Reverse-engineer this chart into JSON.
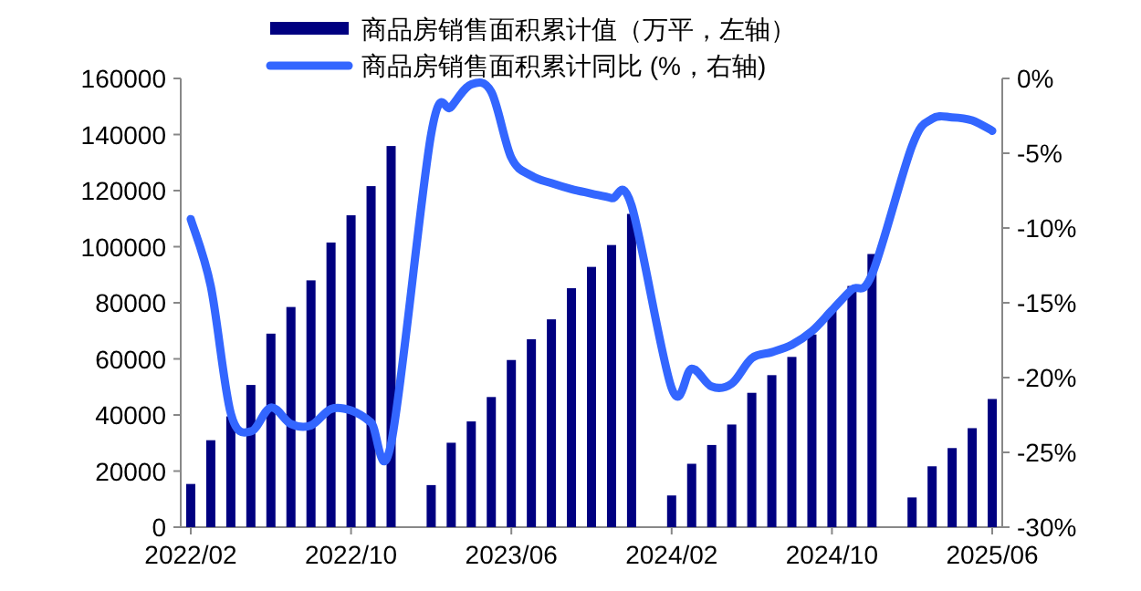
{
  "chart_data": {
    "type": "bar",
    "categories": [
      "2022/02",
      null,
      null,
      null,
      null,
      null,
      null,
      null,
      "2022/10",
      null,
      null,
      null,
      null,
      null,
      null,
      null,
      "2023/06",
      null,
      null,
      null,
      null,
      null,
      null,
      null,
      "2024/02",
      null,
      null,
      null,
      null,
      null,
      null,
      null,
      "2024/10",
      null,
      null,
      null,
      null,
      null,
      null,
      null,
      "2025/06"
    ],
    "series": [
      {
        "name": "商品房销售面积累计值（万平，左轴）",
        "color": "#000080",
        "values": [
          15400,
          31000,
          39500,
          50700,
          69000,
          78500,
          88000,
          101500,
          111200,
          121600,
          135900,
          null,
          15000,
          30100,
          37700,
          46400,
          59600,
          67000,
          74100,
          85200,
          92800,
          100600,
          111700,
          null,
          11300,
          22600,
          29300,
          36600,
          47900,
          54200,
          60700,
          68700,
          77400,
          86000,
          97400,
          null,
          10600,
          21700,
          28200,
          35300,
          45700
        ]
      },
      {
        "name": "商品房销售面积累计同比 (%，右轴)",
        "type": "line",
        "axis": "y2",
        "color": "#3366ff",
        "values": [
          -9.4,
          -13.9,
          -22.4,
          -23.6,
          -22.0,
          -23.1,
          -23.2,
          -22.1,
          -22.2,
          -23.0,
          -24.4,
          null,
          -3.7,
          -1.9,
          -0.4,
          -0.9,
          -5.3,
          -6.5,
          -7.0,
          -7.4,
          -7.7,
          -8.0,
          -8.5,
          null,
          -20.7,
          -19.4,
          -20.6,
          -20.4,
          -18.7,
          -18.3,
          -17.8,
          -16.9,
          -15.5,
          -14.1,
          -13.1,
          null,
          -4.5,
          -2.7,
          -2.6,
          -2.8,
          -3.5
        ]
      }
    ],
    "ylim": [
      0,
      160000
    ],
    "yticks": [
      0,
      20000,
      40000,
      60000,
      80000,
      100000,
      120000,
      140000,
      160000
    ],
    "y2lim": [
      -30,
      0
    ],
    "y2ticks": [
      {
        "value": 0,
        "label": "0%"
      },
      {
        "value": -5,
        "label": "-5%"
      },
      {
        "value": -10,
        "label": "-10%"
      },
      {
        "value": -15,
        "label": "-15%"
      },
      {
        "value": -20,
        "label": "-20%"
      },
      {
        "value": -25,
        "label": "-25%"
      },
      {
        "value": -30,
        "label": "-30%"
      }
    ],
    "legend": "top"
  }
}
